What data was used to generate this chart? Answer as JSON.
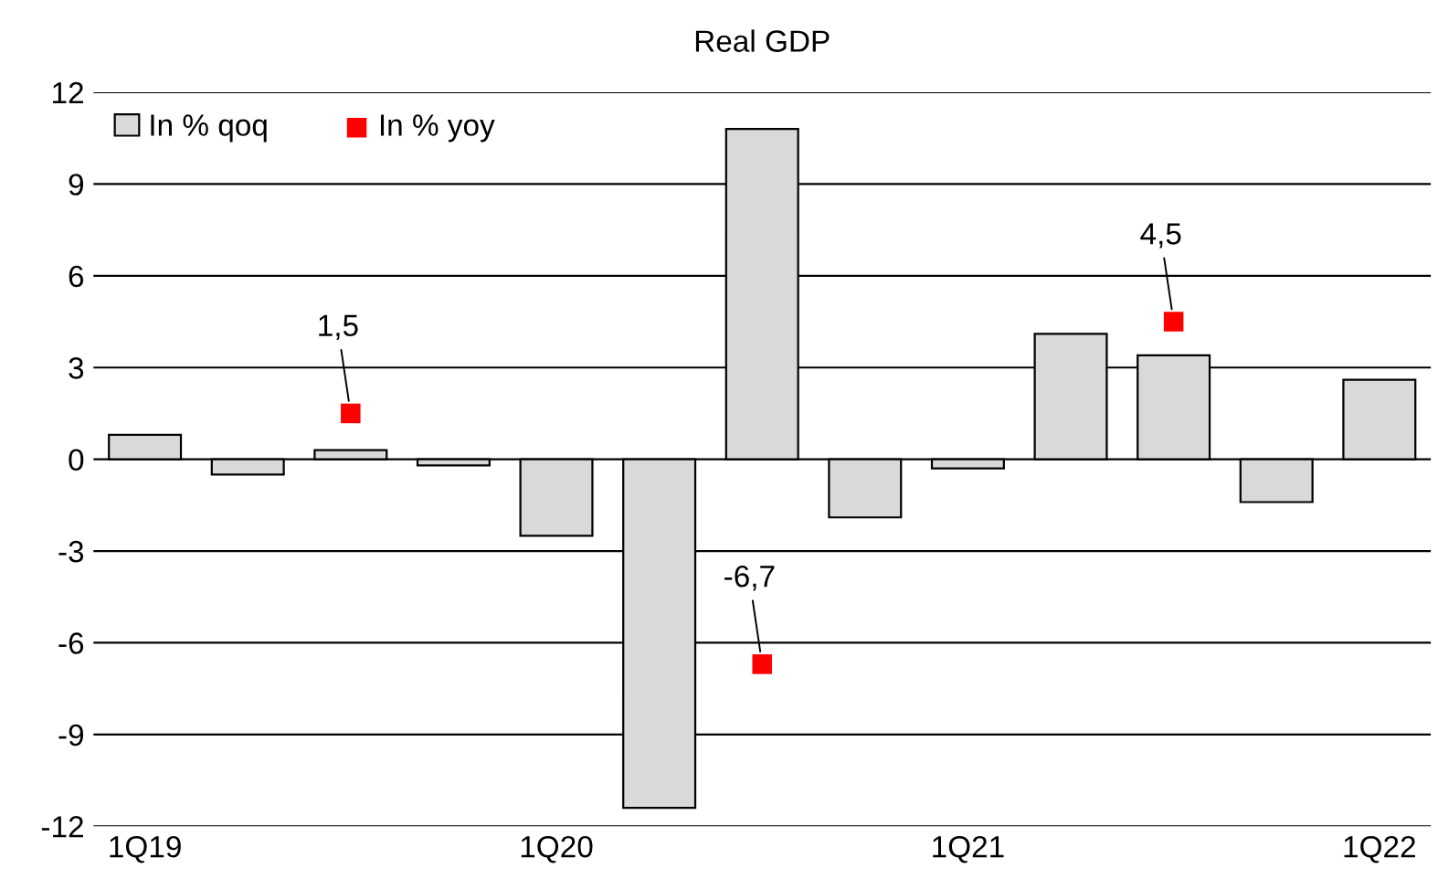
{
  "chart_data": {
    "type": "bar",
    "title": "Real GDP",
    "categories": [
      "1Q19",
      null,
      null,
      null,
      "1Q20",
      null,
      null,
      null,
      "1Q21",
      null,
      null,
      null,
      "1Q22"
    ],
    "series": [
      {
        "name": "In % qoq",
        "color": "#d9d9d9",
        "values": [
          0.8,
          -0.5,
          0.3,
          -0.2,
          -2.5,
          -11.4,
          10.8,
          -1.9,
          -0.3,
          4.1,
          3.4,
          -1.4,
          2.6
        ]
      },
      {
        "name": "In % yoy",
        "type": "scatter",
        "color": "#ff0000",
        "marker": "square",
        "values": [
          null,
          null,
          1.5,
          null,
          null,
          null,
          -6.7,
          null,
          null,
          null,
          4.5,
          null,
          null
        ],
        "value_labels": [
          null,
          null,
          "1,5",
          null,
          null,
          null,
          "-6,7",
          null,
          null,
          null,
          "4,5",
          null,
          null
        ]
      }
    ],
    "ylim": [
      -12,
      12
    ],
    "yticks": [
      -12,
      -9,
      -6,
      -3,
      0,
      3,
      6,
      9,
      12
    ],
    "grid": "y",
    "legend": "top left"
  }
}
